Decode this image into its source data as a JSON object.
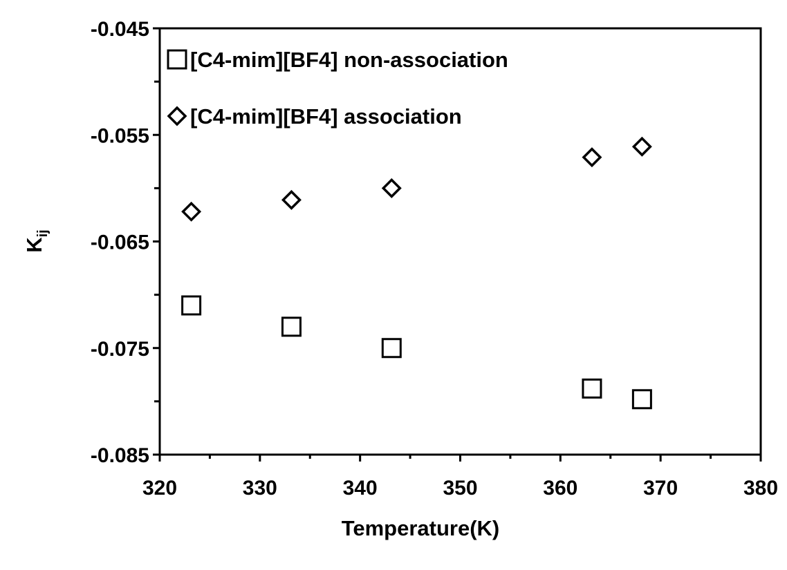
{
  "chart_data": {
    "type": "scatter",
    "title": "",
    "xlabel": "Temperature(K)",
    "ylabel": {
      "main": "K",
      "sub": "ij"
    },
    "xlim": [
      320,
      380
    ],
    "ylim": [
      -0.085,
      -0.045
    ],
    "x_major_step": 10,
    "x_minor_step": 5,
    "y_major_step": 0.01,
    "y_minor_step": 0.005,
    "x_tick_labels": [
      "320",
      "330",
      "340",
      "350",
      "360",
      "370",
      "380"
    ],
    "y_tick_labels": [
      "-0.045",
      "-0.055",
      "-0.065",
      "-0.075",
      "-0.085"
    ],
    "grid": false,
    "legend_position": "top-left",
    "series": [
      {
        "name": "[C4-mim][BF4] non-association",
        "marker": "square",
        "color": "#000000",
        "x": [
          323.15,
          333.15,
          343.15,
          363.15,
          368.15
        ],
        "y": [
          -0.071,
          -0.073,
          -0.075,
          -0.0788,
          -0.0798
        ]
      },
      {
        "name": "[C4-mim][BF4] association",
        "marker": "diamond",
        "color": "#000000",
        "x": [
          323.15,
          333.15,
          343.15,
          363.15,
          368.15
        ],
        "y": [
          -0.0622,
          -0.0611,
          -0.06,
          -0.0571,
          -0.0561
        ]
      }
    ]
  }
}
